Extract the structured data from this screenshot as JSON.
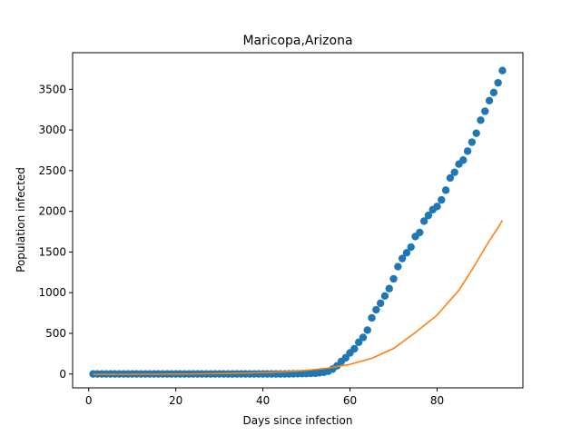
{
  "chart_data": {
    "type": "scatter",
    "title": "Maricopa,Arizona",
    "xlabel": "Days since infection",
    "ylabel": "Population infected",
    "xlim": [
      -3.7,
      99.7
    ],
    "ylim": [
      -170,
      3950
    ],
    "xticks": [
      0,
      20,
      40,
      60,
      80
    ],
    "yticks": [
      0,
      500,
      1000,
      1500,
      2000,
      2500,
      3000,
      3500
    ],
    "grid": false,
    "series": [
      {
        "kind": "scatter",
        "color": "#1f77b4",
        "x": [
          1,
          2,
          3,
          4,
          5,
          6,
          7,
          8,
          9,
          10,
          11,
          12,
          13,
          14,
          15,
          16,
          17,
          18,
          19,
          20,
          21,
          22,
          23,
          24,
          25,
          26,
          27,
          28,
          29,
          30,
          31,
          32,
          33,
          34,
          35,
          36,
          37,
          38,
          39,
          40,
          41,
          42,
          43,
          44,
          45,
          46,
          47,
          48,
          49,
          50,
          51,
          52,
          53,
          54,
          55,
          56,
          57,
          58,
          59,
          60,
          61,
          62,
          63,
          64,
          65,
          66,
          67,
          68,
          69,
          70,
          71,
          72,
          73,
          74,
          75,
          76,
          77,
          78,
          79,
          80,
          81,
          82,
          83,
          84,
          85,
          86,
          87,
          88,
          89,
          90,
          91,
          92,
          93,
          94,
          95
        ],
        "y": [
          1,
          1,
          1,
          1,
          1,
          1,
          1,
          1,
          1,
          1,
          1,
          1,
          1,
          1,
          1,
          1,
          1,
          1,
          1,
          1,
          1,
          1,
          1,
          1,
          1,
          1,
          1,
          1,
          1,
          1,
          1,
          1,
          1,
          1,
          1,
          1,
          1,
          1,
          1,
          1,
          1,
          1,
          1,
          1,
          1,
          2,
          3,
          4,
          5,
          6,
          8,
          10,
          15,
          22,
          35,
          60,
          100,
          155,
          200,
          260,
          310,
          390,
          450,
          540,
          690,
          790,
          870,
          960,
          1050,
          1170,
          1320,
          1420,
          1490,
          1560,
          1690,
          1740,
          1880,
          1950,
          2020,
          2060,
          2140,
          2260,
          2410,
          2480,
          2580,
          2630,
          2740,
          2850,
          2960,
          3120,
          3230,
          3360,
          3460,
          3580,
          3730
        ]
      },
      {
        "kind": "line",
        "color": "#ff7f0e",
        "x": [
          1,
          10,
          20,
          30,
          40,
          45,
          50,
          55,
          60,
          65,
          70,
          75,
          80,
          85,
          88,
          90,
          92,
          94,
          95
        ],
        "y": [
          -5,
          -3,
          0,
          5,
          17,
          28,
          45,
          73,
          119,
          193,
          314,
          510,
          725,
          1030,
          1280,
          1460,
          1640,
          1800,
          1890
        ]
      }
    ]
  }
}
